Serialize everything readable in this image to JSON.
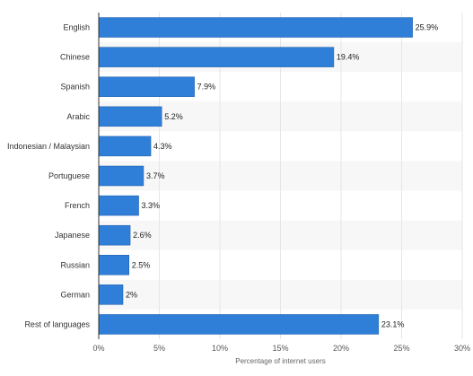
{
  "chart_data": {
    "type": "bar",
    "orientation": "horizontal",
    "categories": [
      "English",
      "Chinese",
      "Spanish",
      "Arabic",
      "Indonesian / Malaysian",
      "Portuguese",
      "French",
      "Japanese",
      "Russian",
      "German",
      "Rest of languages"
    ],
    "values": [
      25.9,
      19.4,
      7.9,
      5.2,
      4.3,
      3.7,
      3.3,
      2.6,
      2.5,
      2,
      23.1
    ],
    "value_labels": [
      "25.9%",
      "19.4%",
      "7.9%",
      "5.2%",
      "4.3%",
      "3.7%",
      "3.3%",
      "2.6%",
      "2.5%",
      "2%",
      "23.1%"
    ],
    "xlabel": "Percentage of internet users",
    "ylabel": "",
    "xlim": [
      0,
      30
    ],
    "x_ticks": [
      0,
      5,
      10,
      15,
      20,
      25,
      30
    ],
    "x_tick_labels": [
      "0%",
      "5%",
      "10%",
      "15%",
      "20%",
      "25%",
      "30%"
    ],
    "grid": true,
    "legend": "none",
    "colors": {
      "bar": "#2f7ed8",
      "bar_stroke": "#1e5fa8",
      "band": "#f7f7f7",
      "grid": "#e6e6e6",
      "axis": "#333333"
    }
  }
}
